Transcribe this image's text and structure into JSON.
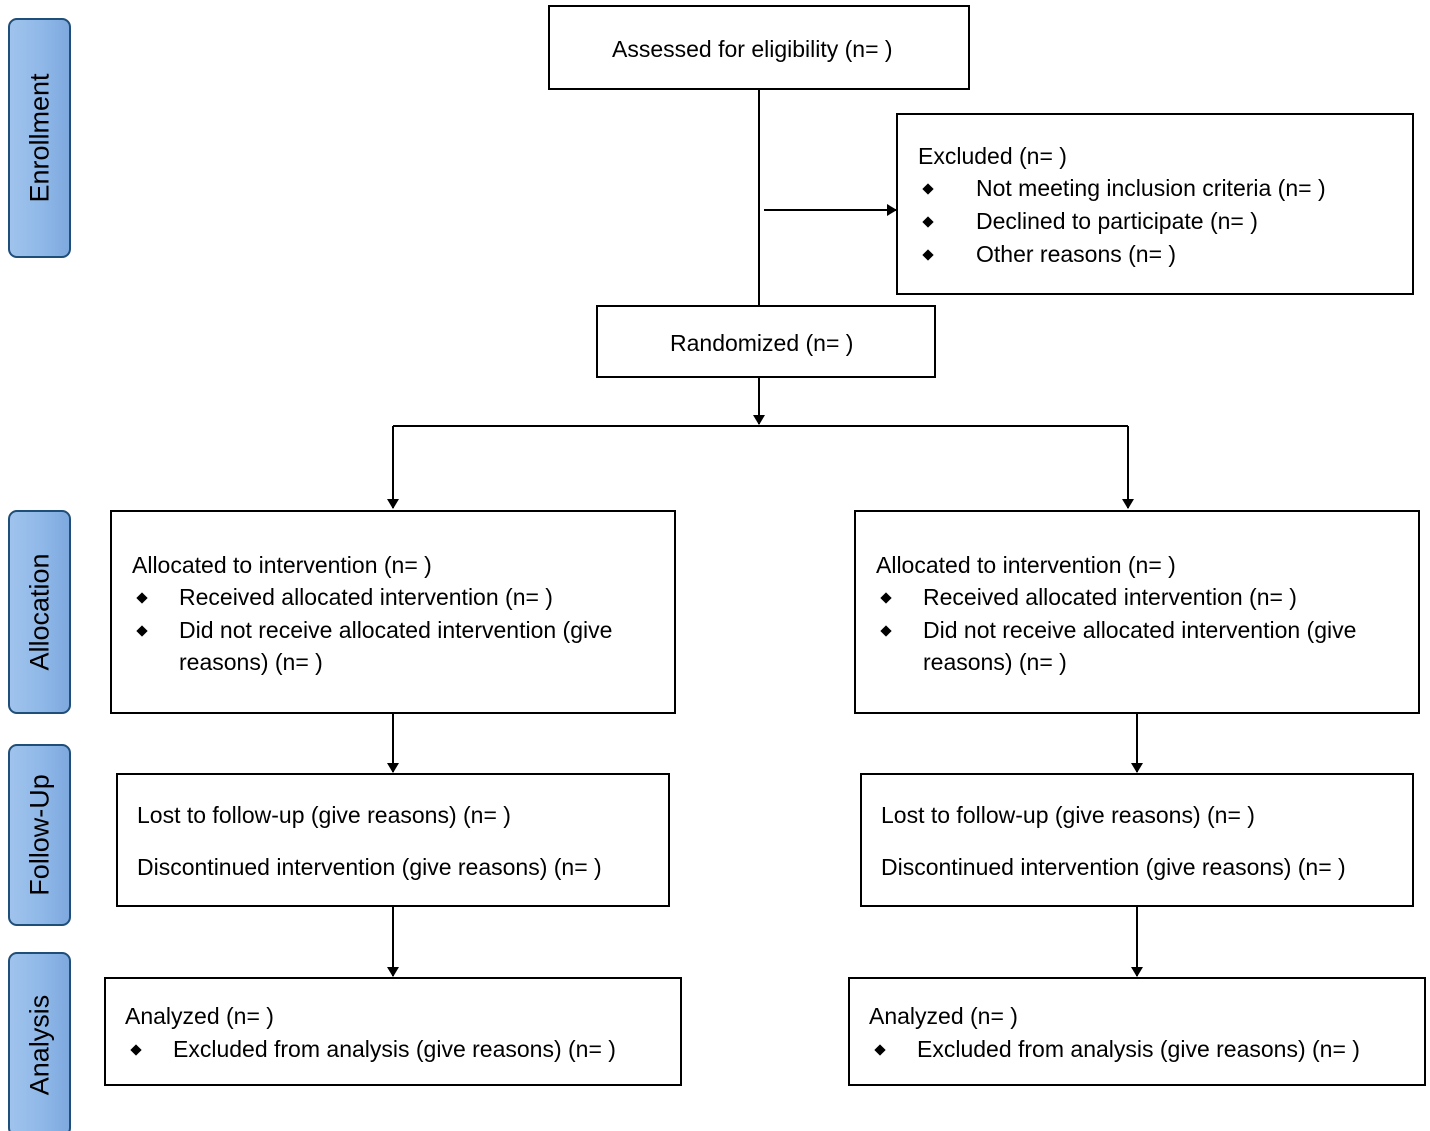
{
  "stages": {
    "enrollment": "Enrollment",
    "allocation": "Allocation",
    "follow_up": "Follow-Up",
    "analysis": "Analysis"
  },
  "assessed": "Assessed for eligibility (n= )",
  "excluded": {
    "title": "Excluded  (n=  )",
    "reasons": [
      "Not meeting inclusion criteria (n= )",
      "Declined to participate (n= )",
      "Other reasons (n= )"
    ]
  },
  "randomized": "Randomized (n= )",
  "left_arm": {
    "allocation_title": "Allocated to intervention (n= )",
    "allocation_items": [
      "Received allocated intervention (n= )",
      "Did not receive allocated intervention (give",
      "reasons) (n= )"
    ],
    "followup_lost": "Lost to follow-up  (give reasons) (n= )",
    "followup_discontinued": "Discontinued intervention (give reasons) (n= )",
    "analysis_title": "Analyzed  (n= )",
    "analysis_item": "Excluded from analysis (give reasons) (n= )"
  },
  "right_arm": {
    "allocation_title": "Allocated to intervention (n= )",
    "allocation_items": [
      "Received allocated intervention (n= )",
      "Did not receive allocated intervention (give",
      "reasons) (n= )"
    ],
    "followup_lost": "Lost to follow-up  (give reasons) (n= )",
    "followup_discontinued": "Discontinued intervention (give reasons) (n= )",
    "analysis_title": "Analyzed  (n= )",
    "analysis_item": "Excluded from analysis (give reasons) (n= )"
  }
}
